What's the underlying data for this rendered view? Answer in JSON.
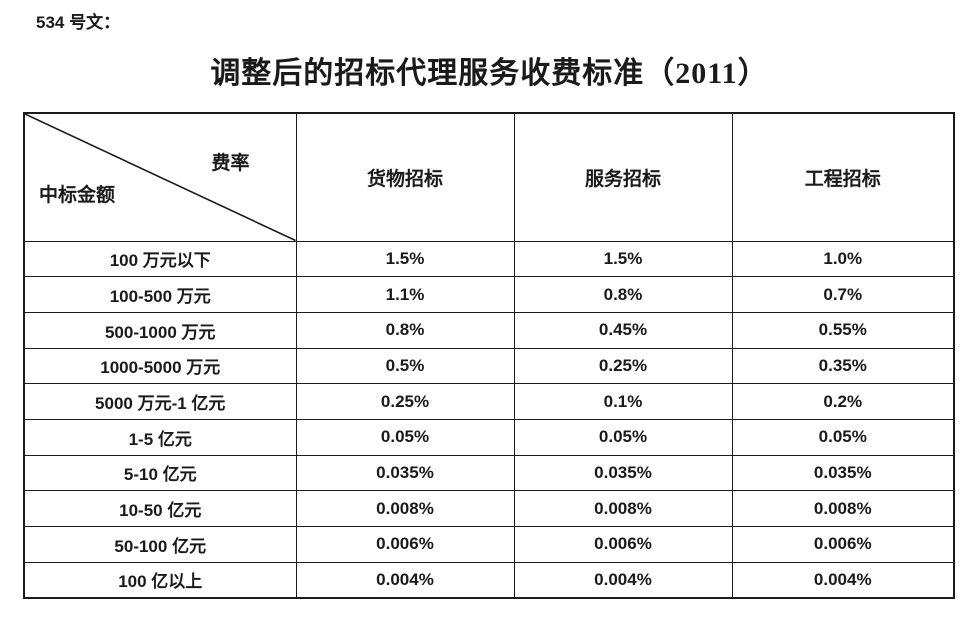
{
  "doc": {
    "ref": "534 号文：",
    "title": "调整后的招标代理服务收费标准（2011）"
  },
  "table": {
    "corner": {
      "top_right": "费率",
      "bottom_left": "中标金额"
    },
    "columns": [
      "货物招标",
      "服务招标",
      "工程招标"
    ],
    "rows": [
      {
        "label": "100 万元以下",
        "values": [
          "1.5%",
          "1.5%",
          "1.0%"
        ]
      },
      {
        "label": "100-500 万元",
        "values": [
          "1.1%",
          "0.8%",
          "0.7%"
        ]
      },
      {
        "label": "500-1000 万元",
        "values": [
          "0.8%",
          "0.45%",
          "0.55%"
        ]
      },
      {
        "label": "1000-5000 万元",
        "values": [
          "0.5%",
          "0.25%",
          "0.35%"
        ]
      },
      {
        "label": "5000 万元-1 亿元",
        "values": [
          "0.25%",
          "0.1%",
          "0.2%"
        ]
      },
      {
        "label": "1-5 亿元",
        "values": [
          "0.05%",
          "0.05%",
          "0.05%"
        ]
      },
      {
        "label": "5-10 亿元",
        "values": [
          "0.035%",
          "0.035%",
          "0.035%"
        ]
      },
      {
        "label": "10-50 亿元",
        "values": [
          "0.008%",
          "0.008%",
          "0.008%"
        ]
      },
      {
        "label": "50-100 亿元",
        "values": [
          "0.006%",
          "0.006%",
          "0.006%"
        ]
      },
      {
        "label": "100 亿以上",
        "values": [
          "0.004%",
          "0.004%",
          "0.004%"
        ]
      }
    ]
  },
  "colors": {
    "text": "#1a1a1a",
    "background": "#ffffff",
    "border": "#1a1a1a"
  }
}
